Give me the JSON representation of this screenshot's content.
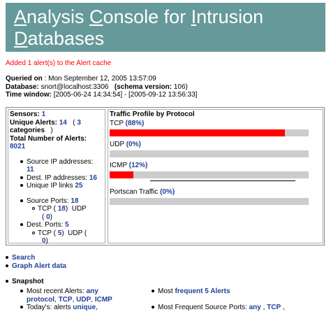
{
  "header": {
    "title_line1_pre": "A",
    "title_line1_a": "nalysis ",
    "title_line1_c": "C",
    "title_line1_b": "onsole for ",
    "title_line1_i": "I",
    "title_line1_d": "ntrusion",
    "title_line2_d": "D",
    "title_line2_rest": "atabases"
  },
  "alert_message": "Added 1 alert(s) to the Alert cache",
  "meta": {
    "queried_label": "Queried on",
    "queried_value": " : Mon September 12, 2005 13:57:09",
    "database_label": "Database:",
    "database_value": " snort@localhost:3306",
    "schema_label": "(schema version:",
    "schema_value": " 106)",
    "window_label": "Time window:",
    "window_value": " [2005-06-24 14:34:54] - [2005-09-12 13:56:33]"
  },
  "summary": {
    "sensors_label": "Sensors:",
    "sensors_value": "1",
    "unique_alerts_label": "Unique Alerts:",
    "unique_alerts_value": "14",
    "categories_value": "3",
    "categories_label": "categories",
    "total_label": "Total Number of Alerts:",
    "total_value": "8021",
    "src_ip_label": "Source IP addresses:",
    "src_ip_value": "11",
    "dst_ip_label": "Dest. IP addresses:",
    "dst_ip_value": "16",
    "ip_links_label": "Unique IP links",
    "ip_links_value": "25",
    "src_ports_label": "Source Ports:",
    "src_ports_value": "18",
    "src_tcp_label": "TCP",
    "src_tcp_value": "18",
    "src_udp_label": "UDP",
    "src_udp_value": "0",
    "dst_ports_label": "Dest. Ports:",
    "dst_ports_value": "5",
    "dst_tcp_label": "TCP",
    "dst_tcp_value": "5",
    "dst_udp_label": "UDP",
    "dst_udp_value": "0"
  },
  "traffic": {
    "heading": "Traffic Profile by Protocol",
    "protocols": [
      {
        "name": "TCP",
        "pct": "(88%)",
        "fraction": 0.88
      },
      {
        "name": "UDP",
        "pct": "(0%)",
        "fraction": 0.0
      },
      {
        "name": "ICMP",
        "pct": "(12%)",
        "fraction": 0.12
      },
      {
        "name": "Portscan Traffic",
        "pct": "(0%)",
        "fraction": 0.0
      }
    ]
  },
  "links": {
    "search": "Search",
    "graph": "Graph Alert data"
  },
  "snapshot": {
    "label": "Snapshot",
    "recent_label": "Most recent Alerts:",
    "recent_any": "any",
    "recent_protocol": "protocol",
    "recent_tcp": "TCP",
    "recent_udp": "UDP",
    "recent_icmp": "ICMP",
    "today_label": "Today's: alerts",
    "today_unique": "unique",
    "frequent_label": "Most",
    "frequent_link": "frequent 5 Alerts",
    "freq_src_label": "Most Frequent Source Ports:",
    "freq_src_any": "any",
    "freq_src_tcp": "TCP"
  }
}
